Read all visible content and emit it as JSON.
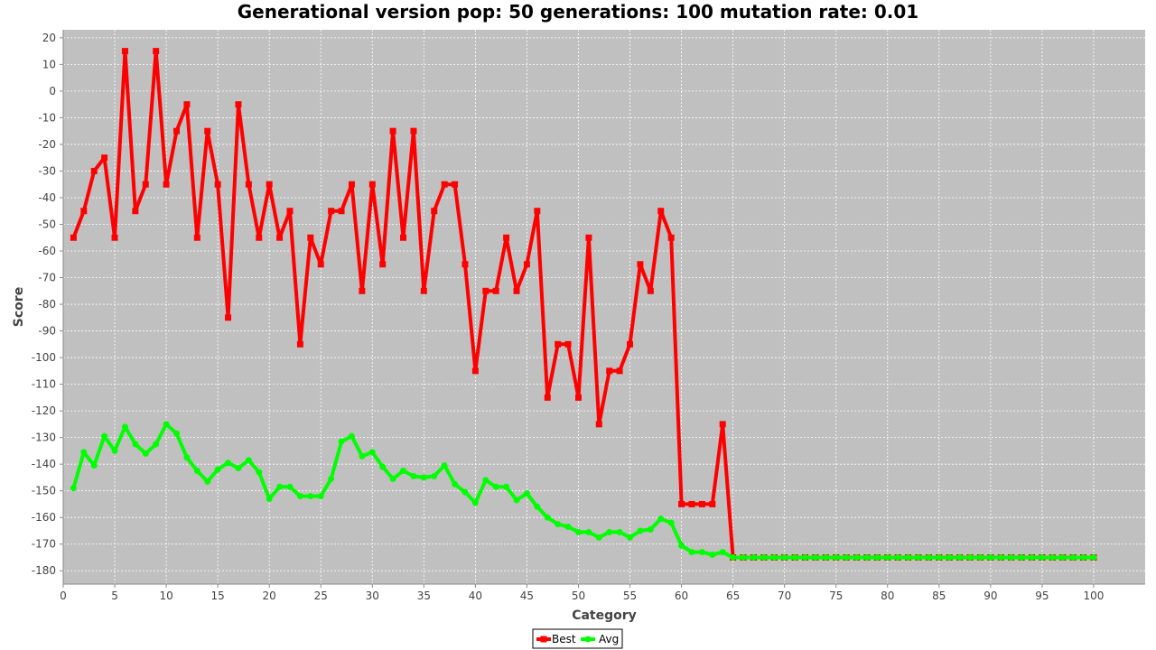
{
  "chart_data": {
    "type": "line",
    "title": "Generational version pop: 50 generations: 100 mutation rate: 0.01",
    "xlabel": "Category",
    "ylabel": "Score",
    "xlim": [
      0,
      105
    ],
    "ylim": [
      -185,
      23
    ],
    "xticks": [
      0,
      5,
      10,
      15,
      20,
      25,
      30,
      35,
      40,
      45,
      50,
      55,
      60,
      65,
      70,
      75,
      80,
      85,
      90,
      95,
      100
    ],
    "yticks": [
      20,
      10,
      0,
      -10,
      -20,
      -30,
      -40,
      -50,
      -60,
      -70,
      -80,
      -90,
      -100,
      -110,
      -120,
      -130,
      -140,
      -150,
      -160,
      -170,
      -180
    ],
    "grid": true,
    "legend_position": "bottom-center",
    "background": "#c0c0c0",
    "series": [
      {
        "name": "Best",
        "color": "#ff0000",
        "marker": "square",
        "x": [
          1,
          2,
          3,
          4,
          5,
          6,
          7,
          8,
          9,
          10,
          11,
          12,
          13,
          14,
          15,
          16,
          17,
          18,
          19,
          20,
          21,
          22,
          23,
          24,
          25,
          26,
          27,
          28,
          29,
          30,
          31,
          32,
          33,
          34,
          35,
          36,
          37,
          38,
          39,
          40,
          41,
          42,
          43,
          44,
          45,
          46,
          47,
          48,
          49,
          50,
          51,
          52,
          53,
          54,
          55,
          56,
          57,
          58,
          59,
          60,
          61,
          62,
          63,
          64,
          65,
          66,
          67,
          68,
          69,
          70,
          71,
          72,
          73,
          74,
          75,
          76,
          77,
          78,
          79,
          80,
          81,
          82,
          83,
          84,
          85,
          86,
          87,
          88,
          89,
          90,
          91,
          92,
          93,
          94,
          95,
          96,
          97,
          98,
          99,
          100
        ],
        "values": [
          -55,
          -45,
          -30,
          -25,
          -55,
          15,
          -45,
          -35,
          15,
          -35,
          -15,
          -5,
          -55,
          -15,
          -35,
          -85,
          -5,
          -35,
          -55,
          -35,
          -55,
          -45,
          -95,
          -55,
          -65,
          -45,
          -45,
          -35,
          -75,
          -35,
          -65,
          -15,
          -55,
          -15,
          -75,
          -45,
          -35,
          -35,
          -65,
          -105,
          -75,
          -75,
          -55,
          -75,
          -65,
          -45,
          -115,
          -95,
          -95,
          -115,
          -55,
          -125,
          -105,
          -105,
          -95,
          -65,
          -75,
          -45,
          -55,
          -155,
          -155,
          -155,
          -155,
          -125,
          -175,
          -175,
          -175,
          -175,
          -175,
          -175,
          -175,
          -175,
          -175,
          -175,
          -175,
          -175,
          -175,
          -175,
          -175,
          -175,
          -175,
          -175,
          -175,
          -175,
          -175,
          -175,
          -175,
          -175,
          -175,
          -175,
          -175,
          -175,
          -175,
          -175,
          -175,
          -175,
          -175,
          -175,
          -175,
          -175
        ]
      },
      {
        "name": "Avg",
        "color": "#00ff00",
        "marker": "circle",
        "x": [
          1,
          2,
          3,
          4,
          5,
          6,
          7,
          8,
          9,
          10,
          11,
          12,
          13,
          14,
          15,
          16,
          17,
          18,
          19,
          20,
          21,
          22,
          23,
          24,
          25,
          26,
          27,
          28,
          29,
          30,
          31,
          32,
          33,
          34,
          35,
          36,
          37,
          38,
          39,
          40,
          41,
          42,
          43,
          44,
          45,
          46,
          47,
          48,
          49,
          50,
          51,
          52,
          53,
          54,
          55,
          56,
          57,
          58,
          59,
          60,
          61,
          62,
          63,
          64,
          65,
          66,
          67,
          68,
          69,
          70,
          71,
          72,
          73,
          74,
          75,
          76,
          77,
          78,
          79,
          80,
          81,
          82,
          83,
          84,
          85,
          86,
          87,
          88,
          89,
          90,
          91,
          92,
          93,
          94,
          95,
          96,
          97,
          98,
          99,
          100
        ],
        "values": [
          -149,
          -135.5,
          -140.5,
          -129.5,
          -135,
          -126,
          -132.5,
          -136,
          -132.5,
          -125,
          -128.5,
          -137.5,
          -142.5,
          -146.5,
          -142,
          -139.5,
          -141.5,
          -138.5,
          -143,
          -153,
          -148.5,
          -148.5,
          -152,
          -152,
          -152,
          -145.5,
          -131.5,
          -129.5,
          -137,
          -135.5,
          -141,
          -145.5,
          -142.5,
          -144.5,
          -145,
          -144.5,
          -140.5,
          -147.5,
          -150.5,
          -154.5,
          -146,
          -148.5,
          -148.5,
          -153.5,
          -151,
          -156,
          -160,
          -162.5,
          -163.5,
          -165.5,
          -165.5,
          -167.5,
          -165.5,
          -165.5,
          -167.5,
          -165,
          -164.5,
          -160.5,
          -162,
          -170.5,
          -173,
          -173,
          -174,
          -173,
          -175,
          -175,
          -175,
          -175,
          -175,
          -175,
          -175,
          -175,
          -175,
          -175,
          -175,
          -175,
          -175,
          -175,
          -175,
          -175,
          -175,
          -175,
          -175,
          -175,
          -175,
          -175,
          -175,
          -175,
          -175,
          -175,
          -175,
          -175,
          -175,
          -175,
          -175,
          -175,
          -175,
          -175,
          -175,
          -175
        ]
      }
    ]
  }
}
